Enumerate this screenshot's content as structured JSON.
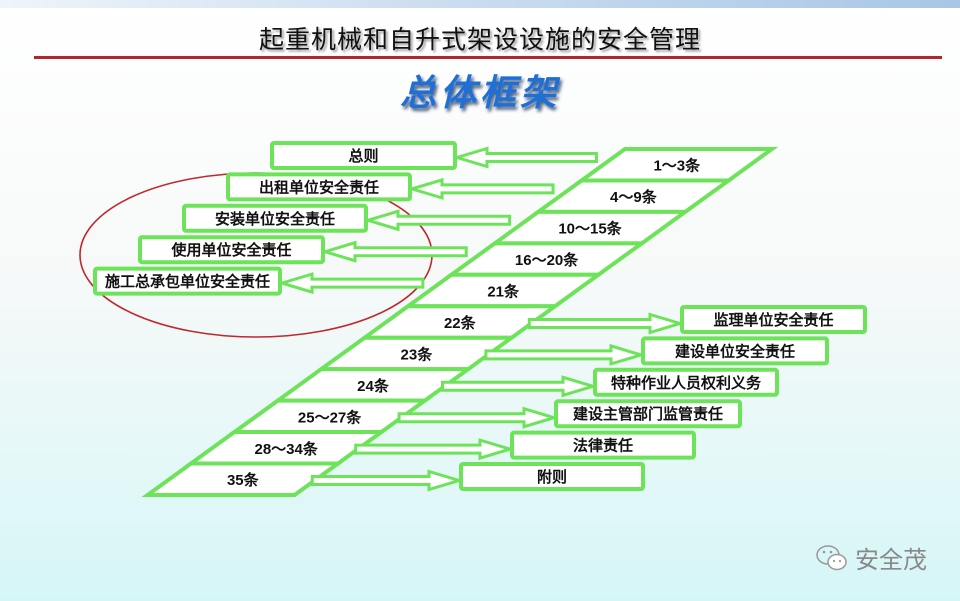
{
  "header": {
    "title": "起重机械和自升式架设设施的安全管理",
    "subtitle": "总体框架"
  },
  "colors": {
    "green": "#6de35a",
    "red_line": "#b5262b",
    "ellipse": "#c0282d",
    "subtitle": "#1e6fd6"
  },
  "articles": [
    "1～3条",
    "4～9条",
    "10～15条",
    "16～20条",
    "21条",
    "22条",
    "23条",
    "24条",
    "25～27条",
    "28～34条",
    "35条"
  ],
  "left_boxes": [
    {
      "label": "总则",
      "row": 0
    },
    {
      "label": "出租单位安全责任",
      "row": 1
    },
    {
      "label": "安装单位安全责任",
      "row": 2
    },
    {
      "label": "使用单位安全责任",
      "row": 3
    },
    {
      "label": "施工总承包单位安全责任",
      "row": 4
    }
  ],
  "right_boxes": [
    {
      "label": "监理单位安全责任",
      "row": 5
    },
    {
      "label": "建设单位安全责任",
      "row": 6
    },
    {
      "label": "特种作业人员权利义务",
      "row": 7
    },
    {
      "label": "建设主管部门监管责任",
      "row": 8
    },
    {
      "label": "法律责任",
      "row": 9
    },
    {
      "label": "附则",
      "row": 10
    }
  ],
  "watermark": {
    "text": "安全茂",
    "icon": "wechat-icon"
  }
}
